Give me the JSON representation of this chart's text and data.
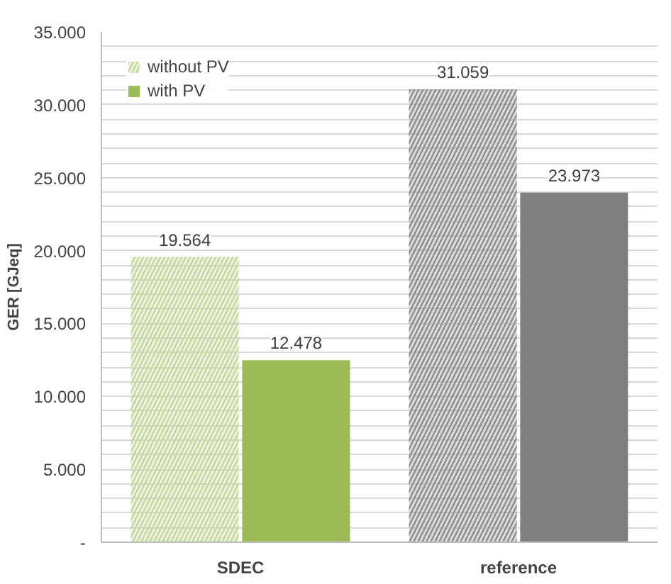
{
  "chart_data": {
    "type": "bar",
    "ylabel": "GER [GJeq]",
    "categories": [
      "SDEC",
      "reference"
    ],
    "series": [
      {
        "name": "without PV",
        "colors": [
          "#c3d69b",
          "#8c8c8c"
        ],
        "values": [
          19564,
          31059
        ],
        "value_labels": [
          "19.564",
          "31.059"
        ]
      },
      {
        "name": "with PV",
        "colors": [
          "#9bbb59",
          "#7f7f7f"
        ],
        "values": [
          12478,
          23973
        ],
        "value_labels": [
          "12.478",
          "23.973"
        ]
      }
    ],
    "ylim": [
      0,
      35000
    ],
    "yticks": [
      {
        "value": 0,
        "label": "-"
      },
      {
        "value": 1000,
        "label": null
      },
      {
        "value": 2000,
        "label": null
      },
      {
        "value": 3000,
        "label": null
      },
      {
        "value": 4000,
        "label": null
      },
      {
        "value": 5000,
        "label": "5.000"
      },
      {
        "value": 6000,
        "label": null
      },
      {
        "value": 7000,
        "label": null
      },
      {
        "value": 8000,
        "label": null
      },
      {
        "value": 9000,
        "label": null
      },
      {
        "value": 10000,
        "label": "10.000"
      },
      {
        "value": 11000,
        "label": null
      },
      {
        "value": 12000,
        "label": null
      },
      {
        "value": 13000,
        "label": null
      },
      {
        "value": 14000,
        "label": null
      },
      {
        "value": 15000,
        "label": "15.000"
      },
      {
        "value": 16000,
        "label": null
      },
      {
        "value": 17000,
        "label": null
      },
      {
        "value": 18000,
        "label": null
      },
      {
        "value": 19000,
        "label": null
      },
      {
        "value": 20000,
        "label": "20.000"
      },
      {
        "value": 21000,
        "label": null
      },
      {
        "value": 22000,
        "label": null
      },
      {
        "value": 23000,
        "label": null
      },
      {
        "value": 24000,
        "label": null
      },
      {
        "value": 25000,
        "label": "25.000"
      },
      {
        "value": 26000,
        "label": null
      },
      {
        "value": 27000,
        "label": null
      },
      {
        "value": 28000,
        "label": null
      },
      {
        "value": 29000,
        "label": null
      },
      {
        "value": 30000,
        "label": "30.000"
      },
      {
        "value": 31000,
        "label": null
      },
      {
        "value": 32000,
        "label": null
      },
      {
        "value": 33000,
        "label": null
      },
      {
        "value": 34000,
        "label": null
      },
      {
        "value": 35000,
        "label": "35.000"
      }
    ],
    "grid": "y",
    "legend": "top left"
  }
}
